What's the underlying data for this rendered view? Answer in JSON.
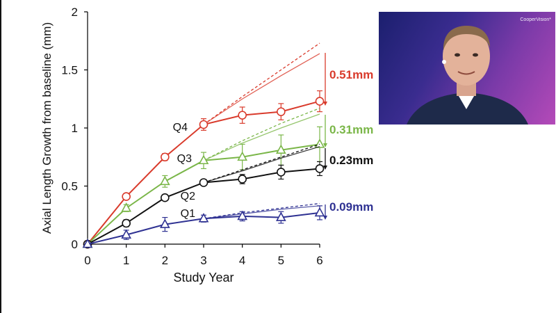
{
  "video": {
    "brand_label": "CooperVision*"
  },
  "chart_data": {
    "type": "line",
    "xlabel": "Study Year",
    "ylabel": "Axial Length Growth from baseline (mm)",
    "xlim": [
      0,
      6
    ],
    "ylim": [
      0,
      2
    ],
    "x_ticks": [
      "0",
      "1",
      "2",
      "3",
      "4",
      "5",
      "6"
    ],
    "y_ticks": [
      "0",
      "0.5",
      "1",
      "1.5",
      "2"
    ],
    "grid": false,
    "legend": "none",
    "series": [
      {
        "name": "Q4",
        "color": "#d93a2b",
        "marker": "circle",
        "x": [
          0,
          1,
          2,
          3,
          4,
          5,
          6
        ],
        "values": [
          0,
          0.41,
          0.75,
          1.03,
          1.11,
          1.14,
          1.23
        ],
        "err": [
          0,
          0.02,
          0.03,
          0.05,
          0.07,
          0.07,
          0.09
        ],
        "projection_x": [
          3,
          4,
          5,
          6
        ],
        "projection_solid": [
          1.03,
          1.25,
          1.45,
          1.64
        ],
        "projection_dashed": [
          1.03,
          1.27,
          1.5,
          1.73
        ],
        "reduction_label": "0.51mm"
      },
      {
        "name": "Q3",
        "color": "#7ab648",
        "marker": "triangle",
        "x": [
          0,
          1,
          2,
          3,
          4,
          5,
          6
        ],
        "values": [
          0,
          0.31,
          0.54,
          0.72,
          0.75,
          0.81,
          0.86
        ],
        "err": [
          0,
          0.03,
          0.05,
          0.07,
          0.11,
          0.13,
          0.15
        ],
        "projection_x": [
          3,
          4,
          5,
          6
        ],
        "projection_solid": [
          0.72,
          0.87,
          1.0,
          1.12
        ],
        "projection_dashed": [
          0.72,
          0.89,
          1.04,
          1.17
        ],
        "reduction_label": "0.31mm"
      },
      {
        "name": "Q2",
        "color": "#111111",
        "marker": "circle",
        "x": [
          0,
          1,
          2,
          3,
          4,
          5,
          6
        ],
        "values": [
          0,
          0.18,
          0.4,
          0.53,
          0.56,
          0.62,
          0.65
        ],
        "err": [
          0,
          0.03,
          0.02,
          0.02,
          0.04,
          0.06,
          0.06
        ],
        "projection_x": [
          3,
          4,
          5,
          6
        ],
        "projection_solid": [
          0.53,
          0.63,
          0.74,
          0.84
        ],
        "projection_dashed": [
          0.53,
          0.64,
          0.75,
          0.86
        ],
        "reduction_label": "0.23mm"
      },
      {
        "name": "Q1",
        "color": "#2e3192",
        "marker": "triangle",
        "x": [
          0,
          1,
          2,
          3,
          4,
          5,
          6
        ],
        "values": [
          0,
          0.08,
          0.17,
          0.22,
          0.24,
          0.23,
          0.27
        ],
        "err": [
          0,
          0.04,
          0.06,
          0.03,
          0.04,
          0.05,
          0.06
        ],
        "projection_x": [
          3,
          4,
          5,
          6
        ],
        "projection_solid": [
          0.22,
          0.26,
          0.3,
          0.33
        ],
        "projection_dashed": [
          0.22,
          0.27,
          0.31,
          0.35
        ],
        "reduction_label": "0.09mm"
      }
    ]
  }
}
